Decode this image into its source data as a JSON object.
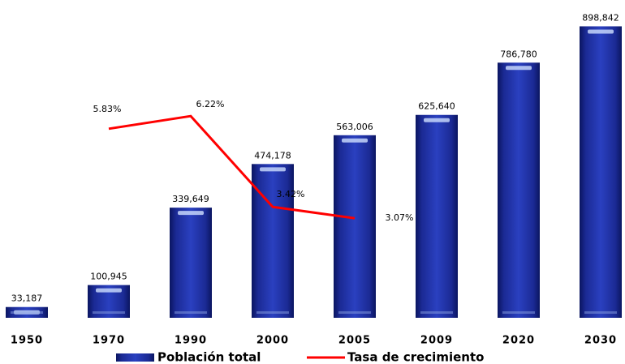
{
  "chart_data": {
    "type": "bar",
    "categories": [
      "1950",
      "1970",
      "1990",
      "2000",
      "2005",
      "2009",
      "2020",
      "2030"
    ],
    "series": [
      {
        "name": "Población total",
        "color": "#1b2a94",
        "values": [
          33187,
          100945,
          339649,
          474178,
          563006,
          625640,
          786780,
          898842
        ],
        "value_labels": [
          "33,187",
          "100,945",
          "339,649",
          "474,178",
          "563,006",
          "625,640",
          "786,780",
          "898,842"
        ]
      },
      {
        "name": "Tasa de crecimiento",
        "type": "line",
        "color": "#ff0000",
        "axis": "y2",
        "values": [
          null,
          5.83,
          6.22,
          3.42,
          3.07,
          null,
          null,
          null
        ],
        "value_labels": [
          null,
          "5.83%",
          "6.22%",
          "3.42%",
          "3.07%",
          null,
          null,
          null
        ]
      }
    ],
    "ylim": [
      0,
      900000
    ],
    "y2lim": [
      0,
      9
    ],
    "legend": "bottom"
  }
}
